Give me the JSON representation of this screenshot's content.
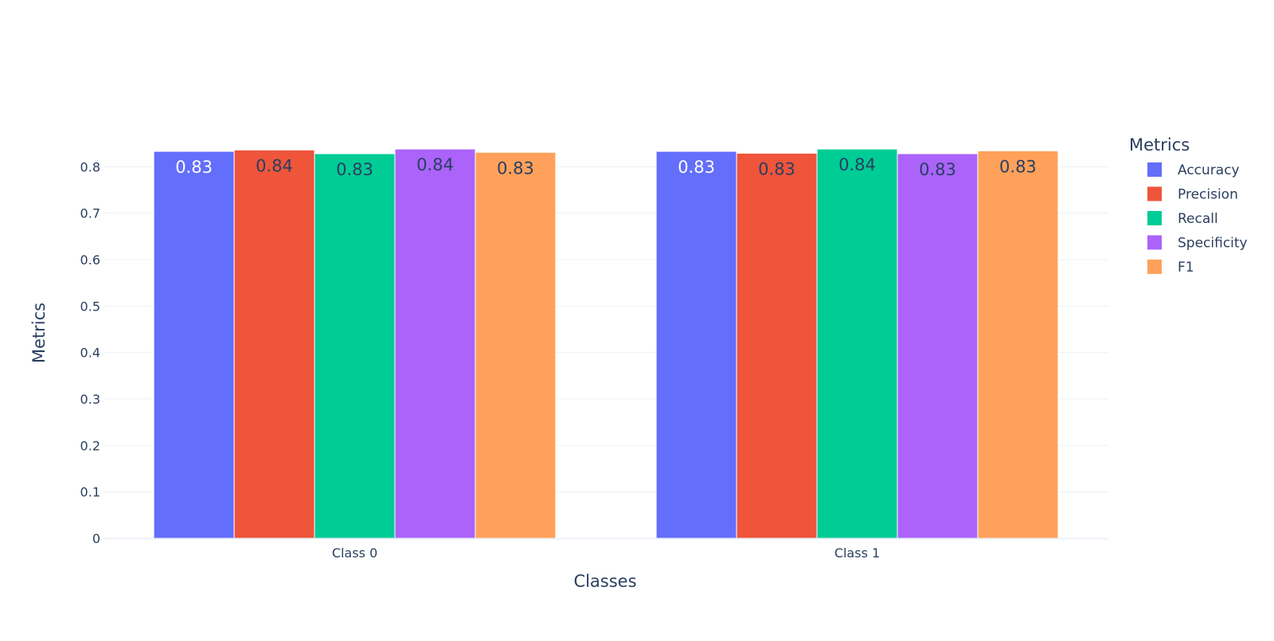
{
  "chart_data": {
    "type": "bar",
    "categories": [
      "Class 0",
      "Class 1"
    ],
    "series": [
      {
        "name": "Accuracy",
        "color": "#636efa",
        "values": [
          0.833,
          0.833
        ],
        "labels": [
          "0.83",
          "0.83"
        ],
        "label_color": "#ffffff"
      },
      {
        "name": "Precision",
        "color": "#ef553b",
        "values": [
          0.836,
          0.829
        ],
        "labels": [
          "0.84",
          "0.83"
        ],
        "label_color": "#2a3f5f"
      },
      {
        "name": "Recall",
        "color": "#00cc96",
        "values": [
          0.828,
          0.838
        ],
        "labels": [
          "0.83",
          "0.84"
        ],
        "label_color": "#2a3f5f"
      },
      {
        "name": "Specificity",
        "color": "#ab63fa",
        "values": [
          0.838,
          0.828
        ],
        "labels": [
          "0.84",
          "0.83"
        ],
        "label_color": "#2a3f5f"
      },
      {
        "name": "F1",
        "color": "#ffa15a",
        "values": [
          0.831,
          0.834
        ],
        "labels": [
          "0.83",
          "0.83"
        ],
        "label_color": "#2a3f5f"
      }
    ],
    "xlabel": "Classes",
    "ylabel": "Metrics",
    "ylim": [
      0,
      0.84
    ],
    "yticks": [
      0,
      0.1,
      0.2,
      0.3,
      0.4,
      0.5,
      0.6,
      0.7,
      0.8
    ],
    "ytick_labels": [
      "0",
      "0.1",
      "0.2",
      "0.3",
      "0.4",
      "0.5",
      "0.6",
      "0.7",
      "0.8"
    ],
    "legend_title": "Metrics",
    "legend_position": "right",
    "grid": true
  }
}
